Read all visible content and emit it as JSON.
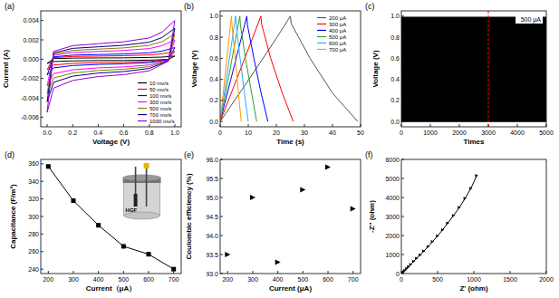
{
  "chart_data": [
    {
      "title": "(a)",
      "type": "line",
      "xlabel": "Voltage (V)",
      "ylabel": "Current (A)",
      "xlim": [
        -0.05,
        1.05
      ],
      "ylim": [
        -0.007,
        0.005
      ],
      "xticks": [
        {
          "value": 0,
          "label": "0.0"
        },
        0.2,
        0.4,
        0.6,
        0.8,
        {
          "value": 1,
          "label": "1.0"
        }
      ],
      "yticks": [
        -0.006,
        -0.004,
        -0.002,
        {
          "value": 0,
          "label": "0.000"
        },
        0.002,
        0.004
      ],
      "legend": "lower right",
      "series": [
        {
          "name": "10 mv/s",
          "color": "#000000",
          "x": [
            0,
            0.05,
            0.2,
            0.4,
            0.6,
            0.8,
            0.9,
            1.0,
            1.0,
            0.95,
            0.8,
            0.6,
            0.4,
            0.2,
            0.05,
            0
          ],
          "values": [
            -0.00044,
            6e-05,
            0.00011,
            0.00013,
            0.00014,
            0.00018,
            0.00022,
            0.00032,
            0.00032,
            -2e-05,
            -0.0001,
            -0.00013,
            -0.00014,
            -0.00018,
            -0.00024,
            -0.00044
          ]
        },
        {
          "name": "50 mv/s",
          "color": "#ff0000",
          "x": [
            0,
            0.05,
            0.2,
            0.4,
            0.6,
            0.8,
            0.9,
            1.0,
            1.0,
            0.95,
            0.8,
            0.6,
            0.4,
            0.2,
            0.05,
            0
          ],
          "values": [
            -0.0011,
            0.00016,
            0.00028,
            0.00032,
            0.00036,
            0.00044,
            0.00056,
            0.0008,
            0.0008,
            -4e-05,
            -0.00024,
            -0.00032,
            -0.00036,
            -0.00044,
            -0.0006,
            -0.0011
          ]
        },
        {
          "name": "100 mv/s",
          "color": "#0000ff",
          "x": [
            0,
            0.05,
            0.2,
            0.4,
            0.6,
            0.8,
            0.9,
            1.0,
            1.0,
            0.95,
            0.8,
            0.6,
            0.4,
            0.2,
            0.05,
            0
          ],
          "values": [
            -0.00165,
            0.00024,
            0.00042,
            0.00048,
            0.00054,
            0.00066,
            0.00084,
            0.0012,
            0.0012,
            -6e-05,
            -0.00036,
            -0.00048,
            -0.00054,
            -0.00066,
            -0.0009,
            -0.00165
          ]
        },
        {
          "name": "300 mv/s",
          "color": "#ff00ff",
          "x": [
            0,
            0.05,
            0.2,
            0.4,
            0.6,
            0.8,
            0.9,
            1.0,
            1.0,
            0.95,
            0.8,
            0.6,
            0.4,
            0.2,
            0.05,
            0
          ],
          "values": [
            -0.00275,
            0.0004,
            0.0007,
            0.0008,
            0.0009,
            0.0011,
            0.0014,
            0.002,
            0.002,
            -0.0001,
            -0.0006,
            -0.0008,
            -0.0009,
            -0.0011,
            -0.0015,
            -0.00275
          ]
        },
        {
          "name": "500 mv/s",
          "color": "#808000",
          "x": [
            0,
            0.05,
            0.2,
            0.4,
            0.6,
            0.8,
            0.9,
            1.0,
            1.0,
            0.95,
            0.8,
            0.6,
            0.4,
            0.2,
            0.05,
            0
          ],
          "values": [
            -0.00358,
            0.00052,
            0.00091,
            0.00104,
            0.00117,
            0.00143,
            0.00182,
            0.0026,
            0.0026,
            -0.00013,
            -0.00078,
            -0.00104,
            -0.00117,
            -0.00143,
            -0.00195,
            -0.00358
          ]
        },
        {
          "name": "700 mv/s",
          "color": "#000080",
          "x": [
            0,
            0.05,
            0.2,
            0.4,
            0.6,
            0.8,
            0.9,
            1.0,
            1.0,
            0.95,
            0.8,
            0.6,
            0.4,
            0.2,
            0.05,
            0
          ],
          "values": [
            -0.0044,
            0.00064,
            0.00112,
            0.00128,
            0.00144,
            0.00176,
            0.00224,
            0.0032,
            0.0032,
            -0.00016,
            -0.00096,
            -0.00128,
            -0.00144,
            -0.00176,
            -0.0024,
            -0.0044
          ]
        },
        {
          "name": "1000 mv/s",
          "color": "#9400d3",
          "x": [
            0,
            0.05,
            0.2,
            0.4,
            0.6,
            0.8,
            0.9,
            1.0,
            1.0,
            0.95,
            0.8,
            0.6,
            0.4,
            0.2,
            0.05,
            0
          ],
          "values": [
            -0.0055,
            0.0008,
            0.0014,
            0.0016,
            0.0018,
            0.0022,
            0.0028,
            0.004,
            0.004,
            -0.0002,
            -0.0012,
            -0.0016,
            -0.0018,
            -0.0022,
            -0.003,
            -0.0055
          ]
        }
      ]
    },
    {
      "title": "(b)",
      "type": "line",
      "xlabel": "Time (s)",
      "ylabel": "Voltage (V)",
      "xlim": [
        0,
        50
      ],
      "ylim": [
        -0.05,
        1.05
      ],
      "xticks": [
        0,
        10,
        20,
        30,
        40,
        50
      ],
      "yticks": [
        {
          "value": 0,
          "label": "0.0"
        },
        0.2,
        0.4,
        0.6,
        0.8,
        {
          "value": 1,
          "label": "1.0"
        }
      ],
      "legend": "upper right",
      "series": [
        {
          "name": "200 μA",
          "color": "#555555",
          "x": [
            0,
            10,
            20,
            25,
            25.3,
            32,
            40,
            49
          ],
          "values": [
            0,
            0.39,
            0.79,
            1.0,
            0.93,
            0.6,
            0.27,
            0
          ]
        },
        {
          "name": "300 μA",
          "color": "#ff0000",
          "x": [
            0,
            6,
            11.5,
            14.5,
            14.8,
            18,
            22,
            26
          ],
          "values": [
            0,
            0.41,
            0.79,
            1.0,
            0.92,
            0.6,
            0.28,
            0
          ]
        },
        {
          "name": "400 μA",
          "color": "#0000ff",
          "x": [
            0,
            3.8,
            7.6,
            9.5,
            9.7,
            12,
            14.5,
            17
          ],
          "values": [
            0,
            0.4,
            0.8,
            1.0,
            0.92,
            0.6,
            0.28,
            0
          ]
        },
        {
          "name": "500 μA",
          "color": "#2ca02c",
          "x": [
            0,
            3,
            5.5,
            7,
            7.2,
            9,
            11,
            13
          ],
          "values": [
            0,
            0.42,
            0.78,
            1.0,
            0.92,
            0.6,
            0.3,
            0
          ]
        },
        {
          "name": "600 μA",
          "color": "#33aaff",
          "x": [
            0,
            2.2,
            4.4,
            5.5,
            5.7,
            7,
            8.5,
            10
          ],
          "values": [
            0,
            0.4,
            0.8,
            1.0,
            0.92,
            0.62,
            0.3,
            0
          ]
        },
        {
          "name": "700 μA",
          "color": "#ff9900",
          "x": [
            0,
            1.6,
            3.2,
            4,
            4.2,
            5.3,
            6.4,
            7.5
          ],
          "values": [
            0,
            0.4,
            0.8,
            1.0,
            0.92,
            0.62,
            0.3,
            0
          ]
        }
      ]
    },
    {
      "title": "(c)",
      "type": "area",
      "xlabel": "Times",
      "ylabel": "Voltage (V)",
      "xlim": [
        0,
        5000
      ],
      "ylim": [
        -0.05,
        1.05
      ],
      "xticks": [
        0,
        1000,
        2000,
        3000,
        4000,
        5000
      ],
      "yticks": [
        {
          "value": 0,
          "label": "0.0"
        },
        0.2,
        0.4,
        0.6,
        0.8,
        {
          "value": 1,
          "label": "1.0"
        }
      ],
      "series": [
        {
          "color": "#000000",
          "x": [
            0,
            5000
          ],
          "values": [
            0.99,
            0.99
          ],
          "base": [
            0,
            0
          ]
        }
      ],
      "reference_lines": [
        {
          "x": 3000,
          "color": "#ff0000",
          "line_style": "dashed"
        }
      ],
      "annotations": [
        {
          "text": "500 μA"
        }
      ]
    },
    {
      "title": "(d)",
      "type": "line",
      "marker": "square",
      "xlabel": "Current（μA）",
      "ylabel": "Capacitance (F/m²)",
      "xlim": [
        170,
        730
      ],
      "ylim": [
        235,
        365
      ],
      "xticks": [
        200,
        300,
        400,
        500,
        600,
        700
      ],
      "yticks": [
        240,
        260,
        280,
        300,
        320,
        340,
        360
      ],
      "x": [
        200,
        300,
        400,
        500,
        600,
        700
      ],
      "series": [
        {
          "color": "#000000",
          "values": [
            357,
            318,
            290,
            266,
            257,
            240
          ]
        }
      ],
      "annotations": [
        {
          "text": "HGF"
        }
      ]
    },
    {
      "title": "(e)",
      "type": "scatter",
      "marker": "triangle",
      "xlabel": "Current (μA)",
      "ylabel": "Coulombic efficiency (%)",
      "xlim": [
        170,
        730
      ],
      "ylim": [
        93,
        96
      ],
      "xticks": [
        200,
        300,
        400,
        500,
        600,
        700
      ],
      "yticks": [
        {
          "value": 93,
          "label": "93.0"
        },
        93.5,
        {
          "value": 94,
          "label": "94.0"
        },
        94.5,
        {
          "value": 95,
          "label": "95.0"
        },
        95.5,
        {
          "value": 96,
          "label": "96.0"
        }
      ],
      "x": [
        200,
        300,
        400,
        500,
        600,
        700
      ],
      "series": [
        {
          "color": "#000000",
          "values": [
            93.5,
            95.0,
            93.3,
            95.2,
            95.8,
            94.7
          ]
        }
      ]
    },
    {
      "title": "(f)",
      "type": "line",
      "marker": "triangle",
      "xlabel": "Z' (ohm)",
      "ylabel": "-Z'' (ohm)",
      "xlim": [
        0,
        2000
      ],
      "ylim": [
        0,
        6000
      ],
      "xticks": [
        0,
        500,
        1000,
        1500,
        2000
      ],
      "yticks": [
        0,
        1000,
        2000,
        3000,
        4000,
        5000,
        6000
      ],
      "series": [
        {
          "color": "#000000",
          "x": [
            0,
            15,
            30,
            50,
            75,
            100,
            130,
            170,
            210,
            260,
            310,
            370,
            430,
            500,
            570,
            640,
            720,
            800,
            880,
            960,
            1040
          ],
          "values": [
            0,
            40,
            100,
            170,
            260,
            360,
            480,
            640,
            800,
            980,
            1180,
            1420,
            1680,
            1980,
            2300,
            2650,
            3050,
            3480,
            3950,
            4480,
            5150
          ]
        }
      ]
    }
  ]
}
